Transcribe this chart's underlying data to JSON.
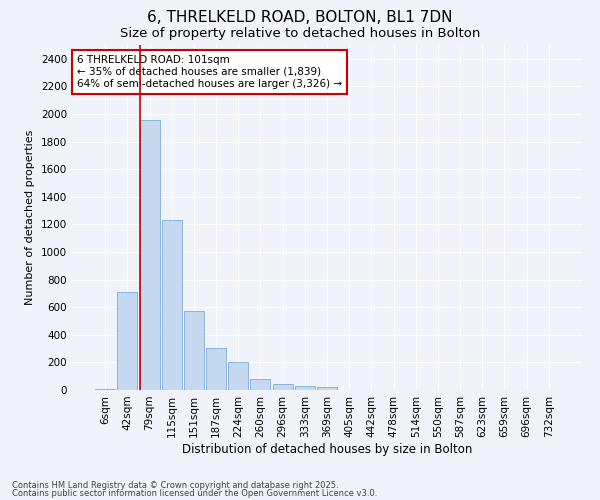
{
  "title1": "6, THRELKELD ROAD, BOLTON, BL1 7DN",
  "title2": "Size of property relative to detached houses in Bolton",
  "xlabel": "Distribution of detached houses by size in Bolton",
  "ylabel": "Number of detached properties",
  "categories": [
    "6sqm",
    "42sqm",
    "79sqm",
    "115sqm",
    "151sqm",
    "187sqm",
    "224sqm",
    "260sqm",
    "296sqm",
    "333sqm",
    "369sqm",
    "405sqm",
    "442sqm",
    "478sqm",
    "514sqm",
    "550sqm",
    "587sqm",
    "623sqm",
    "659sqm",
    "696sqm",
    "732sqm"
  ],
  "values": [
    10,
    710,
    1960,
    1230,
    575,
    305,
    205,
    80,
    42,
    28,
    20,
    0,
    0,
    0,
    0,
    0,
    0,
    0,
    0,
    0,
    0
  ],
  "bar_color": "#c5d8f0",
  "bar_edge_color": "#7aaed6",
  "vline_color": "#cc0000",
  "vline_x_index": 2,
  "annotation_text": "6 THRELKELD ROAD: 101sqm\n← 35% of detached houses are smaller (1,839)\n64% of semi-detached houses are larger (3,326) →",
  "annotation_box_facecolor": "#ffffff",
  "annotation_box_edgecolor": "#cc0000",
  "ylim": [
    0,
    2500
  ],
  "yticks": [
    0,
    200,
    400,
    600,
    800,
    1000,
    1200,
    1400,
    1600,
    1800,
    2000,
    2200,
    2400
  ],
  "footnote1": "Contains HM Land Registry data © Crown copyright and database right 2025.",
  "footnote2": "Contains public sector information licensed under the Open Government Licence v3.0.",
  "bg_color": "#f0f4fa",
  "grid_color": "#ffffff",
  "title1_fontsize": 11,
  "title2_fontsize": 9.5,
  "xlabel_fontsize": 8.5,
  "ylabel_fontsize": 8,
  "tick_fontsize": 7.5,
  "annotation_fontsize": 7.5,
  "footnote_fontsize": 6
}
